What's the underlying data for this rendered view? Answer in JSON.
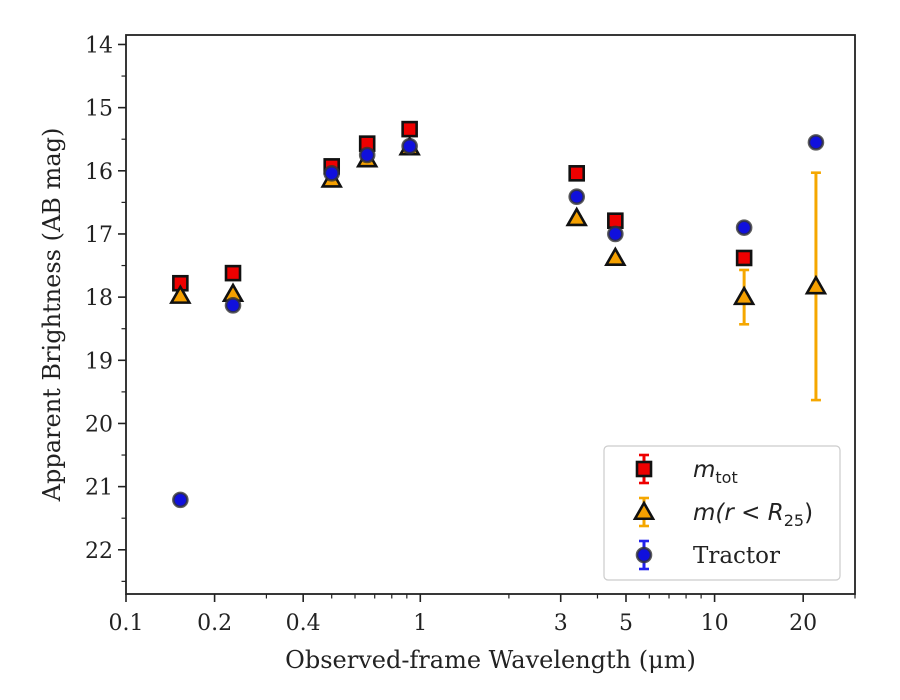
{
  "chart_data": {
    "type": "scatter",
    "xlabel": "Observed-frame Wavelength (μm)",
    "ylabel": "Apparent Brightness (AB mag)",
    "x_scale": "log",
    "xlim": [
      0.1,
      30
    ],
    "ylim": [
      22.7,
      13.85
    ],
    "y_inverted": true,
    "x_ticks": [
      0.1,
      0.2,
      0.4,
      1,
      3,
      5,
      10,
      20
    ],
    "x_tick_labels": [
      "0.1",
      "0.2",
      "0.4",
      "1",
      "3",
      "5",
      "10",
      "20"
    ],
    "y_ticks": [
      14,
      15,
      16,
      17,
      18,
      19,
      20,
      21,
      22
    ],
    "y_tick_labels": [
      "14",
      "15",
      "16",
      "17",
      "18",
      "19",
      "20",
      "21",
      "22"
    ],
    "grid": false,
    "legend_position": "lower-right",
    "series": [
      {
        "name": "m_tot",
        "legend_main": "m",
        "legend_sub": "tot",
        "marker": "square",
        "color": "#ee0000",
        "errcolor": "#ee0000",
        "points": [
          {
            "x": 0.153,
            "y": 17.78,
            "err": 0.04
          },
          {
            "x": 0.231,
            "y": 17.62,
            "err": 0.04
          },
          {
            "x": 0.5,
            "y": 15.93,
            "err": 0.05
          },
          {
            "x": 0.66,
            "y": 15.57,
            "err": 0.05
          },
          {
            "x": 0.92,
            "y": 15.34,
            "err": 0.05
          },
          {
            "x": 3.4,
            "y": 16.04,
            "err": 0.04
          },
          {
            "x": 4.6,
            "y": 16.79,
            "err": 0.04
          },
          {
            "x": 12.6,
            "y": 17.38,
            "err": 0.07
          }
        ]
      },
      {
        "name": "m(r < R25)",
        "legend_main": "m(r < R",
        "legend_sub": "25",
        "legend_close": ")",
        "marker": "triangle",
        "color": "#f5a000",
        "errcolor": "#f5a700",
        "points": [
          {
            "x": 0.153,
            "y": 17.98,
            "err": 0.03
          },
          {
            "x": 0.231,
            "y": 17.95,
            "err": 0.03
          },
          {
            "x": 0.5,
            "y": 16.14,
            "err": 0.03
          },
          {
            "x": 0.66,
            "y": 15.82,
            "err": 0.03
          },
          {
            "x": 0.92,
            "y": 15.63,
            "err": 0.03
          },
          {
            "x": 3.4,
            "y": 16.75,
            "err": 0.03
          },
          {
            "x": 4.6,
            "y": 17.38,
            "err": 0.03
          },
          {
            "x": 12.6,
            "y": 18.0,
            "err": 0.43
          },
          {
            "x": 22.1,
            "y": 17.83,
            "err": 1.8
          }
        ]
      },
      {
        "name": "Tractor",
        "marker": "circle",
        "color": "#1010dd",
        "errcolor": "#2222ee",
        "points": [
          {
            "x": 0.153,
            "y": 21.21,
            "err": 0.06
          },
          {
            "x": 0.231,
            "y": 18.13,
            "err": 0.06
          },
          {
            "x": 0.5,
            "y": 16.04,
            "err": 0.06
          },
          {
            "x": 0.66,
            "y": 15.75,
            "err": 0.06
          },
          {
            "x": 0.92,
            "y": 15.61,
            "err": 0.06
          },
          {
            "x": 3.4,
            "y": 16.41,
            "err": 0.06
          },
          {
            "x": 4.6,
            "y": 17.0,
            "err": 0.06
          },
          {
            "x": 12.6,
            "y": 16.9,
            "err": 0.06
          },
          {
            "x": 22.1,
            "y": 15.55,
            "err": 0.06
          }
        ]
      }
    ]
  }
}
